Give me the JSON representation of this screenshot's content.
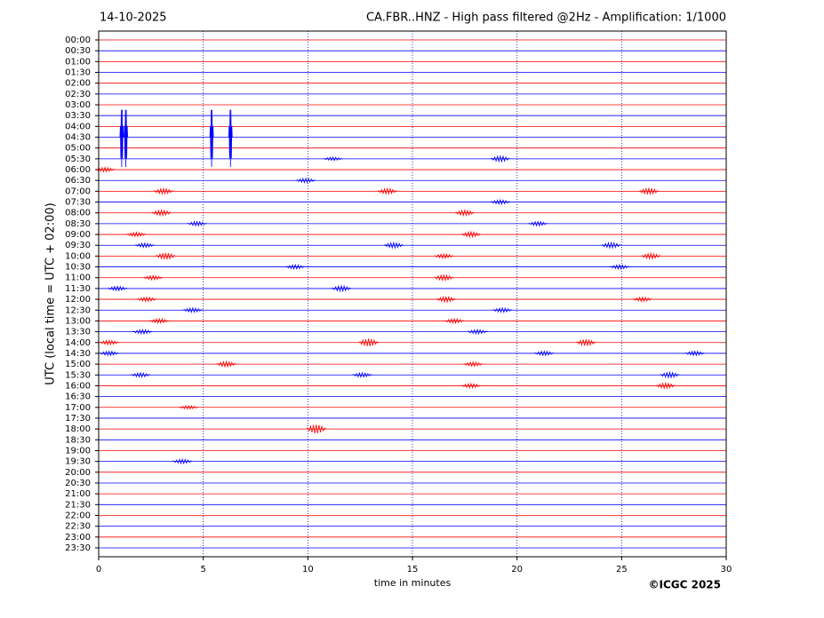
{
  "chart_data": {
    "type": "helicorder",
    "date": "14-10-2025",
    "title": "CA.FBR..HNZ - High pass filtered @2Hz - Amplification: 1/1000",
    "ylabel": "UTC (local time = UTC + 02:00)",
    "xlabel": "time in minutes",
    "copyright": "©ICGC 2025",
    "categories": [
      "00:00",
      "00:30",
      "01:00",
      "01:30",
      "02:00",
      "02:30",
      "03:00",
      "03:30",
      "04:00",
      "04:30",
      "05:00",
      "05:30",
      "06:00",
      "06:30",
      "07:00",
      "07:30",
      "08:00",
      "08:30",
      "09:00",
      "09:30",
      "10:00",
      "10:30",
      "11:00",
      "11:30",
      "12:00",
      "12:30",
      "13:00",
      "13:30",
      "14:00",
      "14:30",
      "15:00",
      "15:30",
      "16:00",
      "16:30",
      "17:00",
      "17:30",
      "18:00",
      "18:30",
      "19:00",
      "19:30",
      "20:00",
      "20:30",
      "21:00",
      "21:30",
      "22:00",
      "22:30",
      "23:00",
      "23:30"
    ],
    "colors": [
      "#ff0000",
      "#0000ff"
    ],
    "xlim": [
      0,
      30
    ],
    "xticks": [
      0,
      5,
      10,
      15,
      20,
      25,
      30
    ],
    "grid": true,
    "events": [
      {
        "row": 9,
        "x": 1.1,
        "size": 5.5
      },
      {
        "row": 9,
        "x": 1.3,
        "size": 5.5
      },
      {
        "row": 9,
        "x": 5.4,
        "size": 5.5
      },
      {
        "row": 9,
        "x": 6.3,
        "size": 5.5
      },
      {
        "row": 11,
        "x": 19.2,
        "size": 0.5
      },
      {
        "row": 11,
        "x": 11.2,
        "size": 0.3
      },
      {
        "row": 12,
        "x": 0.3,
        "size": 0.4
      },
      {
        "row": 13,
        "x": 9.9,
        "size": 0.4
      },
      {
        "row": 14,
        "x": 3.1,
        "size": 0.5
      },
      {
        "row": 14,
        "x": 13.8,
        "size": 0.5
      },
      {
        "row": 14,
        "x": 26.3,
        "size": 0.6
      },
      {
        "row": 15,
        "x": 19.2,
        "size": 0.4
      },
      {
        "row": 16,
        "x": 3,
        "size": 0.5
      },
      {
        "row": 16,
        "x": 17.5,
        "size": 0.5
      },
      {
        "row": 17,
        "x": 4.7,
        "size": 0.4
      },
      {
        "row": 17,
        "x": 21,
        "size": 0.4
      },
      {
        "row": 18,
        "x": 1.8,
        "size": 0.4
      },
      {
        "row": 18,
        "x": 17.8,
        "size": 0.5
      },
      {
        "row": 19,
        "x": 2.2,
        "size": 0.4
      },
      {
        "row": 19,
        "x": 14.1,
        "size": 0.5
      },
      {
        "row": 19,
        "x": 24.5,
        "size": 0.5
      },
      {
        "row": 20,
        "x": 3.2,
        "size": 0.6
      },
      {
        "row": 20,
        "x": 16.5,
        "size": 0.4
      },
      {
        "row": 20,
        "x": 26.4,
        "size": 0.5
      },
      {
        "row": 21,
        "x": 9.4,
        "size": 0.4
      },
      {
        "row": 21,
        "x": 24.9,
        "size": 0.4
      },
      {
        "row": 22,
        "x": 2.6,
        "size": 0.4
      },
      {
        "row": 22,
        "x": 16.5,
        "size": 0.5
      },
      {
        "row": 23,
        "x": 0.9,
        "size": 0.4
      },
      {
        "row": 23,
        "x": 11.6,
        "size": 0.5
      },
      {
        "row": 24,
        "x": 2.3,
        "size": 0.4
      },
      {
        "row": 24,
        "x": 16.6,
        "size": 0.5
      },
      {
        "row": 24,
        "x": 26,
        "size": 0.4
      },
      {
        "row": 25,
        "x": 4.5,
        "size": 0.4
      },
      {
        "row": 25,
        "x": 19.3,
        "size": 0.4
      },
      {
        "row": 26,
        "x": 2.9,
        "size": 0.4
      },
      {
        "row": 26,
        "x": 17,
        "size": 0.4
      },
      {
        "row": 27,
        "x": 2.1,
        "size": 0.4
      },
      {
        "row": 27,
        "x": 18.1,
        "size": 0.4
      },
      {
        "row": 28,
        "x": 12.9,
        "size": 0.7
      },
      {
        "row": 28,
        "x": 23.3,
        "size": 0.6
      },
      {
        "row": 28,
        "x": 0.5,
        "size": 0.4
      },
      {
        "row": 29,
        "x": 0.5,
        "size": 0.4
      },
      {
        "row": 29,
        "x": 21.3,
        "size": 0.4
      },
      {
        "row": 29,
        "x": 28.5,
        "size": 0.4
      },
      {
        "row": 30,
        "x": 6.1,
        "size": 0.5
      },
      {
        "row": 30,
        "x": 17.9,
        "size": 0.4
      },
      {
        "row": 31,
        "x": 2,
        "size": 0.4
      },
      {
        "row": 31,
        "x": 12.6,
        "size": 0.4
      },
      {
        "row": 31,
        "x": 27.3,
        "size": 0.5
      },
      {
        "row": 32,
        "x": 17.8,
        "size": 0.4
      },
      {
        "row": 32,
        "x": 27.1,
        "size": 0.5
      },
      {
        "row": 34,
        "x": 4.3,
        "size": 0.3
      },
      {
        "row": 36,
        "x": 10.4,
        "size": 0.8
      },
      {
        "row": 39,
        "x": 4,
        "size": 0.4
      }
    ]
  }
}
